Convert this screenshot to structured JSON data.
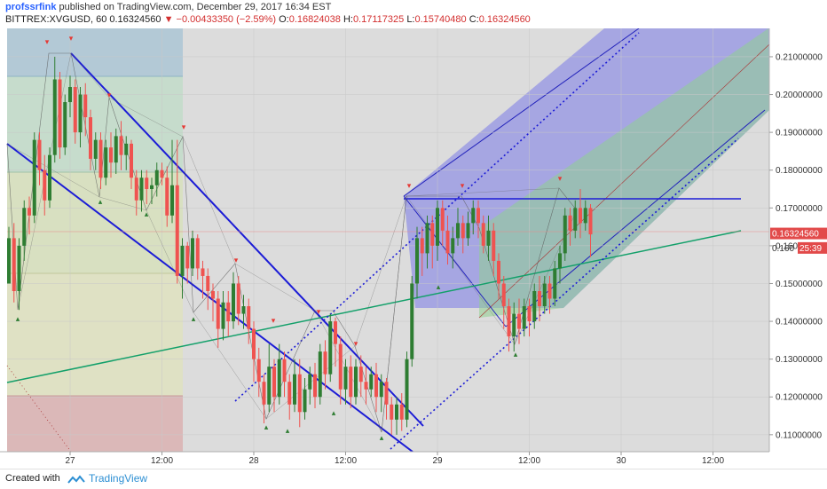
{
  "header": {
    "author": "profssrfink",
    "published": "published on TradingView.com, December 29, 2017 16:34 EST",
    "symbol": "BITTREX:XVGUSD, 60",
    "last": "0.16324560",
    "arrow": "▼",
    "change": "−0.00433350 (−2.59%)",
    "open_label": "O:",
    "open": "0.16824038",
    "high_label": "H:",
    "high": "0.17117325",
    "low_label": "L:",
    "low": "0.15740480",
    "close_label": "C:",
    "close": "0.16324560"
  },
  "footer": {
    "created_with": "Created with",
    "brand": "TradingView"
  },
  "colors": {
    "bull": "#2e7d32",
    "bear": "#ef5350",
    "channel_blue": "#1c1cd6",
    "trend_green": "#13a06a",
    "price_label": "#e24a4a"
  },
  "chart_data": {
    "type": "candlestick",
    "timeframe": "60",
    "yticks": [
      "0.21000000",
      "0.20000000",
      "0.19000000",
      "0.18000000",
      "0.17000000",
      "0.16000000",
      "0.15000000",
      "0.14000000",
      "0.13000000",
      "0.12000000",
      "0.11000000"
    ],
    "ylim": [
      0.1055,
      0.2175
    ],
    "xticks": [
      {
        "i": 12,
        "label": "27"
      },
      {
        "i": 30,
        "label": "12:00"
      },
      {
        "i": 48,
        "label": "28"
      },
      {
        "i": 66,
        "label": "12:00"
      },
      {
        "i": 84,
        "label": "29"
      },
      {
        "i": 102,
        "label": "12:00"
      },
      {
        "i": 120,
        "label": "30"
      },
      {
        "i": 138,
        "label": "12:00"
      }
    ],
    "last_price": {
      "value": 0.1632456,
      "label": "0.16324560"
    },
    "countdown": "25:39",
    "countdown_value": 0.16,
    "countdown_prefix": "0.160",
    "candles": [
      [
        0.15,
        0.162,
        0.15,
        0.165
      ],
      [
        0.162,
        0.148,
        0.145,
        0.166
      ],
      [
        0.148,
        0.16,
        0.143,
        0.162
      ],
      [
        0.16,
        0.17,
        0.156,
        0.172
      ],
      [
        0.17,
        0.168,
        0.163,
        0.173
      ],
      [
        0.168,
        0.188,
        0.166,
        0.19
      ],
      [
        0.188,
        0.18,
        0.176,
        0.19
      ],
      [
        0.18,
        0.172,
        0.168,
        0.184
      ],
      [
        0.172,
        0.184,
        0.17,
        0.186
      ],
      [
        0.184,
        0.204,
        0.182,
        0.21
      ],
      [
        0.204,
        0.186,
        0.183,
        0.206
      ],
      [
        0.186,
        0.198,
        0.184,
        0.2
      ],
      [
        0.198,
        0.202,
        0.194,
        0.205
      ],
      [
        0.202,
        0.19,
        0.187,
        0.204
      ],
      [
        0.19,
        0.2,
        0.186,
        0.202
      ],
      [
        0.2,
        0.194,
        0.189,
        0.203
      ],
      [
        0.194,
        0.183,
        0.18,
        0.196
      ],
      [
        0.183,
        0.188,
        0.18,
        0.19
      ],
      [
        0.188,
        0.178,
        0.175,
        0.19
      ],
      [
        0.178,
        0.186,
        0.176,
        0.188
      ],
      [
        0.186,
        0.182,
        0.178,
        0.19
      ],
      [
        0.182,
        0.189,
        0.179,
        0.191
      ],
      [
        0.189,
        0.184,
        0.18,
        0.193
      ],
      [
        0.184,
        0.187,
        0.18,
        0.189
      ],
      [
        0.187,
        0.178,
        0.175,
        0.188
      ],
      [
        0.178,
        0.172,
        0.168,
        0.18
      ],
      [
        0.172,
        0.178,
        0.169,
        0.18
      ],
      [
        0.178,
        0.175,
        0.171,
        0.18
      ],
      [
        0.175,
        0.176,
        0.171,
        0.178
      ],
      [
        0.176,
        0.18,
        0.173,
        0.182
      ],
      [
        0.18,
        0.178,
        0.176,
        0.182
      ],
      [
        0.178,
        0.168,
        0.165,
        0.181
      ],
      [
        0.168,
        0.176,
        0.166,
        0.188
      ],
      [
        0.176,
        0.152,
        0.15,
        0.188
      ],
      [
        0.152,
        0.16,
        0.146,
        0.162
      ],
      [
        0.16,
        0.154,
        0.15,
        0.161
      ],
      [
        0.154,
        0.162,
        0.152,
        0.164
      ],
      [
        0.162,
        0.154,
        0.151,
        0.163
      ],
      [
        0.154,
        0.152,
        0.146,
        0.156
      ],
      [
        0.152,
        0.148,
        0.143,
        0.154
      ],
      [
        0.148,
        0.146,
        0.14,
        0.15
      ],
      [
        0.146,
        0.138,
        0.133,
        0.148
      ],
      [
        0.138,
        0.145,
        0.135,
        0.148
      ],
      [
        0.145,
        0.14,
        0.136,
        0.148
      ],
      [
        0.14,
        0.15,
        0.138,
        0.153
      ],
      [
        0.15,
        0.142,
        0.139,
        0.152
      ],
      [
        0.142,
        0.144,
        0.138,
        0.147
      ],
      [
        0.144,
        0.138,
        0.134,
        0.146
      ],
      [
        0.138,
        0.13,
        0.124,
        0.14
      ],
      [
        0.13,
        0.124,
        0.12,
        0.133
      ],
      [
        0.124,
        0.118,
        0.113,
        0.126
      ],
      [
        0.118,
        0.128,
        0.116,
        0.134
      ],
      [
        0.128,
        0.12,
        0.116,
        0.13
      ],
      [
        0.12,
        0.13,
        0.118,
        0.134
      ],
      [
        0.13,
        0.124,
        0.12,
        0.132
      ],
      [
        0.124,
        0.118,
        0.114,
        0.126
      ],
      [
        0.118,
        0.126,
        0.116,
        0.13
      ],
      [
        0.126,
        0.116,
        0.112,
        0.13
      ],
      [
        0.116,
        0.122,
        0.114,
        0.125
      ],
      [
        0.122,
        0.126,
        0.118,
        0.128
      ],
      [
        0.126,
        0.12,
        0.117,
        0.129
      ],
      [
        0.12,
        0.132,
        0.118,
        0.134
      ],
      [
        0.132,
        0.126,
        0.122,
        0.135
      ],
      [
        0.126,
        0.14,
        0.124,
        0.142
      ],
      [
        0.14,
        0.134,
        0.128,
        0.141
      ],
      [
        0.134,
        0.122,
        0.118,
        0.136
      ],
      [
        0.122,
        0.128,
        0.118,
        0.13
      ],
      [
        0.128,
        0.12,
        0.117,
        0.131
      ],
      [
        0.12,
        0.128,
        0.118,
        0.13
      ],
      [
        0.128,
        0.124,
        0.12,
        0.131
      ],
      [
        0.124,
        0.122,
        0.118,
        0.128
      ],
      [
        0.122,
        0.126,
        0.12,
        0.128
      ],
      [
        0.126,
        0.12,
        0.116,
        0.129
      ],
      [
        0.12,
        0.124,
        0.116,
        0.126
      ],
      [
        0.124,
        0.118,
        0.114,
        0.125
      ],
      [
        0.118,
        0.114,
        0.11,
        0.12
      ],
      [
        0.114,
        0.118,
        0.11,
        0.12
      ],
      [
        0.118,
        0.114,
        0.111,
        0.121
      ],
      [
        0.114,
        0.13,
        0.112,
        0.132
      ],
      [
        0.13,
        0.15,
        0.128,
        0.152
      ],
      [
        0.15,
        0.162,
        0.146,
        0.165
      ],
      [
        0.162,
        0.158,
        0.152,
        0.165
      ],
      [
        0.158,
        0.166,
        0.154,
        0.168
      ],
      [
        0.166,
        0.16,
        0.154,
        0.168
      ],
      [
        0.16,
        0.17,
        0.156,
        0.172
      ],
      [
        0.17,
        0.164,
        0.16,
        0.172
      ],
      [
        0.164,
        0.158,
        0.155,
        0.168
      ],
      [
        0.158,
        0.162,
        0.154,
        0.165
      ],
      [
        0.162,
        0.166,
        0.16,
        0.17
      ],
      [
        0.166,
        0.162,
        0.158,
        0.168
      ],
      [
        0.162,
        0.166,
        0.16,
        0.169
      ],
      [
        0.166,
        0.17,
        0.163,
        0.172
      ],
      [
        0.17,
        0.166,
        0.162,
        0.172
      ],
      [
        0.166,
        0.16,
        0.158,
        0.168
      ],
      [
        0.16,
        0.164,
        0.156,
        0.168
      ],
      [
        0.164,
        0.156,
        0.152,
        0.166
      ],
      [
        0.156,
        0.15,
        0.146,
        0.158
      ],
      [
        0.15,
        0.144,
        0.138,
        0.152
      ],
      [
        0.144,
        0.136,
        0.132,
        0.146
      ],
      [
        0.136,
        0.142,
        0.132,
        0.145
      ],
      [
        0.142,
        0.138,
        0.134,
        0.146
      ],
      [
        0.138,
        0.144,
        0.136,
        0.146
      ],
      [
        0.144,
        0.14,
        0.136,
        0.146
      ],
      [
        0.14,
        0.148,
        0.138,
        0.15
      ],
      [
        0.148,
        0.144,
        0.14,
        0.152
      ],
      [
        0.144,
        0.15,
        0.142,
        0.152
      ],
      [
        0.15,
        0.146,
        0.142,
        0.152
      ],
      [
        0.146,
        0.154,
        0.144,
        0.156
      ],
      [
        0.154,
        0.158,
        0.15,
        0.16
      ],
      [
        0.158,
        0.168,
        0.156,
        0.17
      ],
      [
        0.168,
        0.164,
        0.16,
        0.17
      ],
      [
        0.164,
        0.17,
        0.162,
        0.172
      ],
      [
        0.17,
        0.166,
        0.162,
        0.175
      ],
      [
        0.166,
        0.17,
        0.164,
        0.172
      ],
      [
        0.17,
        0.163,
        0.157,
        0.171
      ]
    ]
  }
}
